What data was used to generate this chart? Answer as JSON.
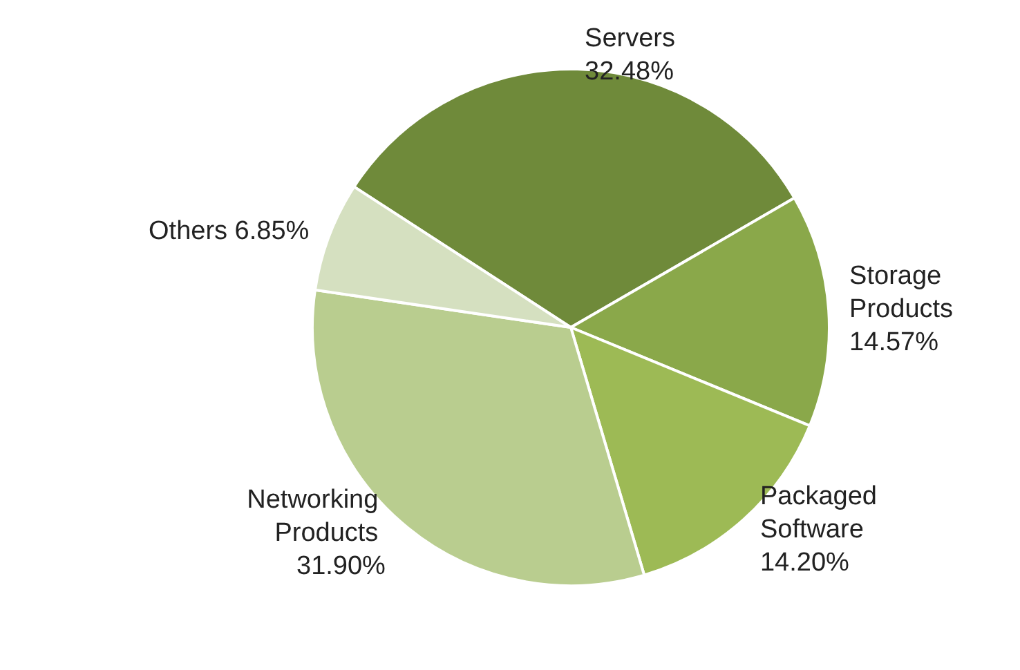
{
  "chart_data": {
    "type": "pie",
    "categories": [
      "Servers",
      "Storage Products",
      "Packaged Software",
      "Networking Products",
      "Others"
    ],
    "values": [
      32.48,
      14.57,
      14.2,
      31.9,
      6.85
    ],
    "value_labels": [
      "32.48%",
      "14.57%",
      "14.20%",
      "31.90%",
      "6.85%"
    ],
    "colors": [
      "#6f8a3a",
      "#8aa84a",
      "#9dba55",
      "#b9cd8f",
      "#d5e0c0"
    ],
    "legend": false
  }
}
